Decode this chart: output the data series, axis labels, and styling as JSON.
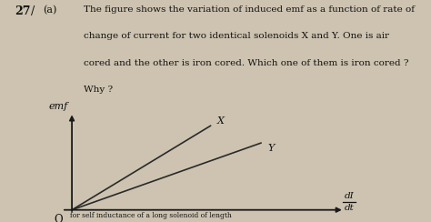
{
  "background_color": "#cdc3b0",
  "question_number": "27",
  "part": "(a)",
  "question_text_line1": "The figure shows the variation of induced emf as a function of rate of",
  "question_text_line2": "change of current for two identical solenoids X and Y. One is air",
  "question_text_line3": "cored and the other is iron cored. Which one of them is iron cored ?",
  "question_text_line4": "Why ?",
  "ylabel": "emf",
  "origin_label": "O",
  "line_X": {
    "x": [
      0,
      0.55
    ],
    "y": [
      0,
      0.88
    ],
    "label": "X"
  },
  "line_Y": {
    "x": [
      0,
      0.75
    ],
    "y": [
      0,
      0.7
    ],
    "label": "Y"
  },
  "axis_color": "#1a1a1a",
  "line_color": "#2a2a2a",
  "text_color": "#111111",
  "figsize": [
    4.74,
    2.44
  ],
  "dpi": 100
}
